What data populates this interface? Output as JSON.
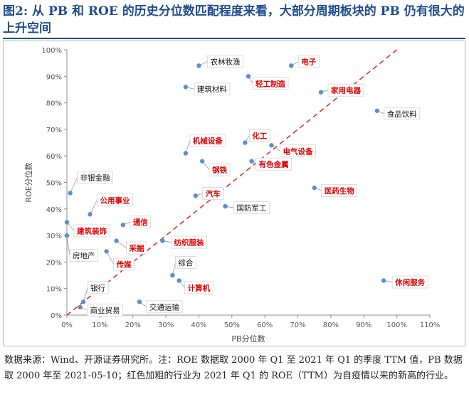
{
  "figure": {
    "title": "图2: 从 PB 和 ROE 的历史分位数匹配程度来看，大部分周期板块的 PB 仍有很大的上升空间",
    "note": "数据来源：Wind、开源证券研究所。注：ROE 数据取 2000 年 Q1 至 2021 年 Q1 的季度 TTM 值，PB 数据取 2000 年至 2021-05-10；红色加粗的行业为 2021 年 Q1 的 ROE（TTM）为自疫情以来的新高的行业。"
  },
  "chart_data": {
    "type": "scatter",
    "xlabel": "PB分位数",
    "ylabel": "ROE分位数",
    "xlim": [
      0,
      110
    ],
    "ylim": [
      0,
      100
    ],
    "x_ticks": [
      "0%",
      "10%",
      "20%",
      "30%",
      "40%",
      "50%",
      "60%",
      "70%",
      "80%",
      "90%",
      "100%",
      "110%"
    ],
    "y_ticks": [
      "0%",
      "10%",
      "20%",
      "30%",
      "40%",
      "50%",
      "60%",
      "70%",
      "80%",
      "90%",
      "100%"
    ],
    "grid": false,
    "reference_line": {
      "style": "dashed",
      "color": "#e03030",
      "from": [
        0,
        0
      ],
      "to": [
        100,
        100
      ]
    },
    "colors": {
      "point": "#5b8fd0",
      "highlight_label": "#e00000",
      "normal_label": "#111111",
      "leader": "#9a9a9a"
    },
    "points": [
      {
        "label": "农林牧渔",
        "x": 40,
        "y": 94,
        "highlight": false
      },
      {
        "label": "电子",
        "x": 68,
        "y": 94,
        "highlight": true
      },
      {
        "label": "轻工制造",
        "x": 55,
        "y": 90,
        "highlight": true
      },
      {
        "label": "建筑材料",
        "x": 36,
        "y": 86,
        "highlight": false
      },
      {
        "label": "家用电器",
        "x": 77,
        "y": 84,
        "highlight": true
      },
      {
        "label": "食品饮料",
        "x": 94,
        "y": 77,
        "highlight": false
      },
      {
        "label": "化工",
        "x": 54,
        "y": 65,
        "highlight": true
      },
      {
        "label": "机械设备",
        "x": 36,
        "y": 61,
        "highlight": true
      },
      {
        "label": "电气设备",
        "x": 62,
        "y": 64,
        "highlight": true
      },
      {
        "label": "有色金属",
        "x": 56,
        "y": 58,
        "highlight": true
      },
      {
        "label": "钢铁",
        "x": 41,
        "y": 58,
        "highlight": true
      },
      {
        "label": "医药生物",
        "x": 75,
        "y": 48,
        "highlight": true
      },
      {
        "label": "非银金融",
        "x": 1,
        "y": 46,
        "highlight": false
      },
      {
        "label": "汽车",
        "x": 39,
        "y": 45,
        "highlight": true
      },
      {
        "label": "国防军工",
        "x": 48,
        "y": 41,
        "highlight": false
      },
      {
        "label": "公用事业",
        "x": 7,
        "y": 38,
        "highlight": true
      },
      {
        "label": "建筑装饰",
        "x": 0,
        "y": 35,
        "highlight": true
      },
      {
        "label": "通信",
        "x": 17,
        "y": 34,
        "highlight": true
      },
      {
        "label": "房地产",
        "x": 0,
        "y": 30,
        "highlight": false
      },
      {
        "label": "采掘",
        "x": 15,
        "y": 28,
        "highlight": true
      },
      {
        "label": "纺织服装",
        "x": 29,
        "y": 28,
        "highlight": true
      },
      {
        "label": "传媒",
        "x": 12,
        "y": 24,
        "highlight": true
      },
      {
        "label": "综合",
        "x": 32,
        "y": 15,
        "highlight": false
      },
      {
        "label": "计算机",
        "x": 34,
        "y": 13,
        "highlight": true
      },
      {
        "label": "休闲服务",
        "x": 96,
        "y": 13,
        "highlight": true
      },
      {
        "label": "银行",
        "x": 5,
        "y": 5,
        "highlight": false
      },
      {
        "label": "交通运输",
        "x": 22,
        "y": 5,
        "highlight": false
      },
      {
        "label": "商业贸易",
        "x": 4,
        "y": 3,
        "highlight": false
      }
    ]
  }
}
